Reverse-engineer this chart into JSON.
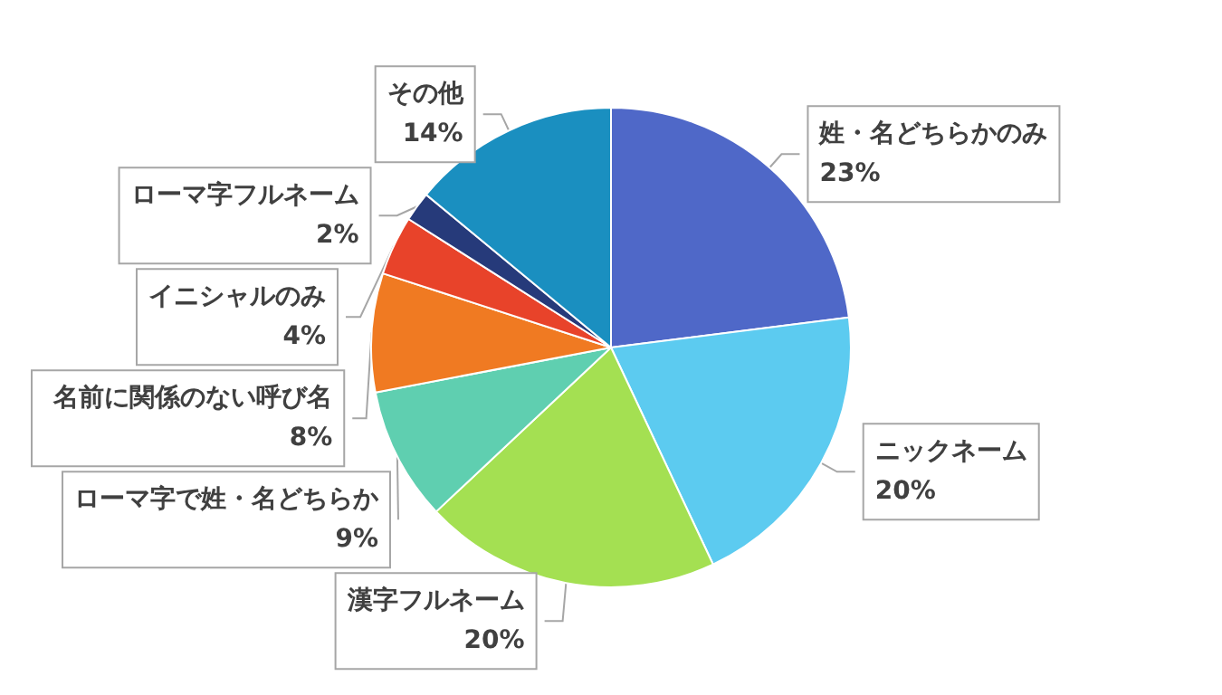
{
  "chart_data": {
    "type": "pie",
    "categories": [
      "姓・名どちらかのみ",
      "ニックネーム",
      "漢字フルネーム",
      "ローマ字で姓・名どちらか",
      "名前に関係のない呼び名",
      "イニシャルのみ",
      "ローマ字フルネーム",
      "その他"
    ],
    "values": [
      23,
      20,
      20,
      9,
      8,
      4,
      2,
      14
    ],
    "colors": [
      "#4f68c8",
      "#5ccbf0",
      "#a4e052",
      "#5fcfb0",
      "#f07a22",
      "#e8432a",
      "#263a7a",
      "#1a8fc0"
    ],
    "value_labels": [
      "23%",
      "20%",
      "20%",
      "9%",
      "8%",
      "4%",
      "2%",
      "14%"
    ],
    "legend": false
  }
}
